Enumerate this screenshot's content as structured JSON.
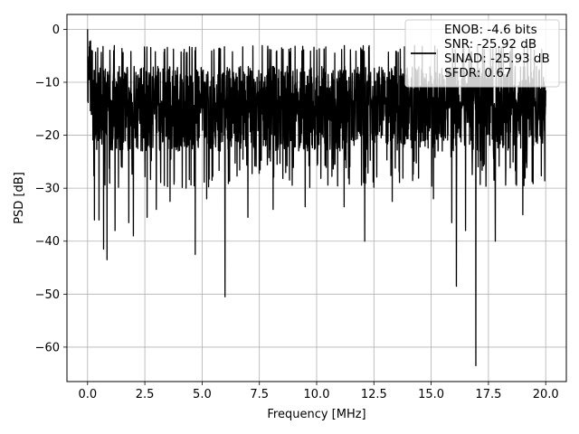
{
  "chart_data": {
    "type": "line",
    "title": "",
    "xlabel": "Frequency [MHz]",
    "ylabel": "PSD [dB]",
    "xlim": [
      -0.9,
      20.9
    ],
    "ylim": [
      -66.5,
      2.8
    ],
    "grid": true,
    "x_ticks": [
      0.0,
      2.5,
      5.0,
      7.5,
      10.0,
      12.5,
      15.0,
      17.5,
      20.0
    ],
    "x_tick_labels": [
      "0.0",
      "2.5",
      "5.0",
      "7.5",
      "10.0",
      "12.5",
      "15.0",
      "17.5",
      "20.0"
    ],
    "y_ticks": [
      0,
      -10,
      -20,
      -30,
      -40,
      -50,
      -60
    ],
    "y_tick_labels": [
      "0",
      "−10",
      "−20",
      "−30",
      "−40",
      "−50",
      "−60"
    ],
    "legend": {
      "placement": "upper-right",
      "lines": [
        "ENOB: -4.6 bits",
        "SNR: -25.92 dB",
        "SINAD: -25.93 dB",
        "SFDR: 0.67"
      ]
    },
    "series": [
      {
        "color": "#000000",
        "x_start": 0.0,
        "x_end": 20.0,
        "peak_value": 0.0,
        "peak_x": 0.0,
        "typical_upper": -7.0,
        "typical_lower": -20.0,
        "dips": [
          {
            "x": 0.3,
            "y": -36.0
          },
          {
            "x": 0.5,
            "y": -36.0
          },
          {
            "x": 0.7,
            "y": -41.5
          },
          {
            "x": 0.85,
            "y": -43.5
          },
          {
            "x": 1.2,
            "y": -38.0
          },
          {
            "x": 1.8,
            "y": -36.5
          },
          {
            "x": 2.0,
            "y": -39.0
          },
          {
            "x": 2.6,
            "y": -35.5
          },
          {
            "x": 3.0,
            "y": -34.0
          },
          {
            "x": 3.6,
            "y": -32.5
          },
          {
            "x": 4.3,
            "y": -30.0
          },
          {
            "x": 4.7,
            "y": -42.5
          },
          {
            "x": 5.2,
            "y": -32.0
          },
          {
            "x": 6.0,
            "y": -50.5
          },
          {
            "x": 7.0,
            "y": -35.5
          },
          {
            "x": 8.1,
            "y": -34.0
          },
          {
            "x": 9.5,
            "y": -33.5
          },
          {
            "x": 11.2,
            "y": -33.5
          },
          {
            "x": 12.1,
            "y": -40.0
          },
          {
            "x": 13.3,
            "y": -32.5
          },
          {
            "x": 15.1,
            "y": -32.0
          },
          {
            "x": 15.9,
            "y": -36.5
          },
          {
            "x": 16.1,
            "y": -48.5
          },
          {
            "x": 16.5,
            "y": -38.0
          },
          {
            "x": 16.95,
            "y": -63.5
          },
          {
            "x": 17.8,
            "y": -40.0
          },
          {
            "x": 19.0,
            "y": -35.0
          }
        ]
      }
    ]
  }
}
